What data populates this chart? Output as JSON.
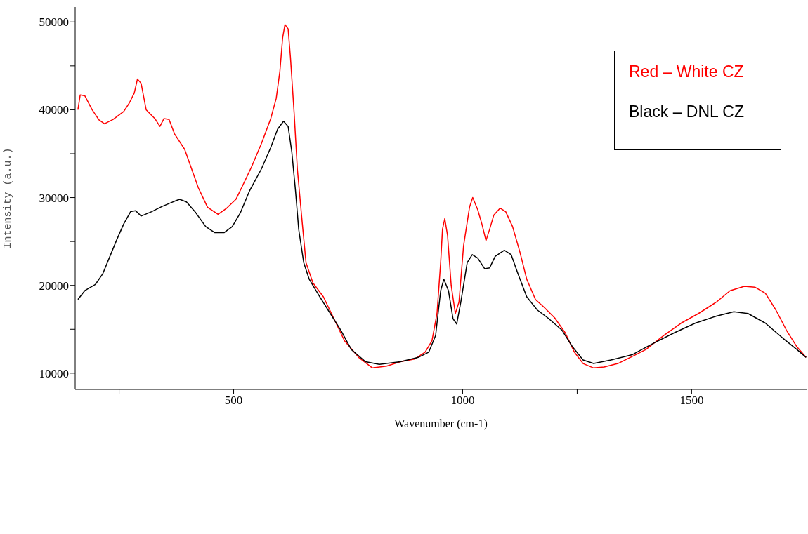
{
  "chart_data": {
    "type": "line",
    "xlabel": "Wavenumber (cm-1)",
    "ylabel": "Intensity (a.u.)",
    "xlim": [
      154,
      1751
    ],
    "ylim": [
      8150,
      51700
    ],
    "xticks": [
      {
        "value": 250,
        "label": null
      },
      500,
      {
        "value": 750,
        "label": null
      },
      1000,
      {
        "value": 1250,
        "label": null
      },
      1500
    ],
    "yticks": [
      10000,
      {
        "value": 15000,
        "label": null
      },
      20000,
      {
        "value": 25000,
        "label": null
      },
      30000,
      {
        "value": 35000,
        "label": null
      },
      40000,
      {
        "value": 45000,
        "label": null
      },
      50000
    ],
    "grid": false,
    "legend": "top right",
    "marker": "none",
    "line_style": "solid",
    "series": [
      {
        "name": "Red – White CZ",
        "color": "#ff0000",
        "x": [
          160,
          165,
          175,
          191,
          206,
          218,
          237,
          260,
          272,
          283,
          290,
          298,
          309,
          328,
          339,
          348,
          359,
          371,
          393,
          408,
          423,
          443,
          466,
          485,
          505,
          520,
          540,
          561,
          581,
          593,
          601,
          607,
          612,
          619,
          624,
          632,
          639,
          650,
          658,
          673,
          696,
          719,
          742,
          773,
          803,
          834,
          864,
          895,
          918,
          933,
          944,
          952,
          956,
          961,
          967,
          975,
          984,
          992,
          1002,
          1015,
          1022,
          1033,
          1042,
          1051,
          1059,
          1068,
          1082,
          1094,
          1109,
          1125,
          1140,
          1159,
          1178,
          1201,
          1224,
          1244,
          1263,
          1286,
          1309,
          1339,
          1370,
          1400,
          1439,
          1477,
          1515,
          1554,
          1584,
          1615,
          1638,
          1661,
          1684,
          1707,
          1730,
          1750
        ],
        "values": [
          40000,
          41700,
          41600,
          40000,
          38850,
          38400,
          38900,
          39800,
          40750,
          41900,
          43500,
          43000,
          40000,
          39000,
          38100,
          39000,
          38900,
          37250,
          35500,
          33300,
          31100,
          28900,
          28100,
          28800,
          29800,
          31400,
          33600,
          36200,
          39000,
          41300,
          44400,
          48200,
          49700,
          49200,
          46000,
          39700,
          33300,
          27000,
          22600,
          20300,
          18700,
          16200,
          13700,
          11800,
          10600,
          10800,
          11300,
          11600,
          12400,
          13700,
          16800,
          22600,
          26400,
          27600,
          25700,
          20000,
          16800,
          18100,
          24500,
          28900,
          30000,
          28600,
          27000,
          25100,
          26400,
          28000,
          28800,
          28400,
          26700,
          23800,
          20700,
          18400,
          17500,
          16300,
          14600,
          12400,
          11100,
          10600,
          10700,
          11100,
          11900,
          12700,
          14300,
          15700,
          16800,
          18100,
          19400,
          19900,
          19800,
          19100,
          17200,
          14900,
          13000,
          11800
        ]
      },
      {
        "name": "Black – DNL CZ",
        "color": "#000000",
        "x": [
          160,
          175,
          198,
          214,
          229,
          244,
          260,
          275,
          286,
          298,
          321,
          344,
          367,
          382,
          397,
          417,
          439,
          459,
          479,
          497,
          515,
          535,
          561,
          581,
          596,
          609,
          619,
          627,
          635,
          642,
          653,
          665,
          688,
          711,
          734,
          757,
          788,
          818,
          864,
          903,
          926,
          941,
          952,
          959,
          969,
          979,
          987,
          996,
          1010,
          1021,
          1033,
          1048,
          1059,
          1071,
          1091,
          1106,
          1121,
          1140,
          1163,
          1186,
          1217,
          1240,
          1263,
          1286,
          1324,
          1370,
          1416,
          1462,
          1508,
          1554,
          1592,
          1623,
          1661,
          1699,
          1730,
          1750
        ],
        "values": [
          18400,
          19400,
          20100,
          21300,
          23200,
          25100,
          27000,
          28400,
          28500,
          27900,
          28400,
          29000,
          29500,
          29800,
          29500,
          28300,
          26700,
          26000,
          26000,
          26700,
          28300,
          30800,
          33300,
          35700,
          37800,
          38700,
          38100,
          35200,
          30800,
          26400,
          22600,
          20700,
          18700,
          16800,
          14900,
          12700,
          11300,
          11000,
          11300,
          11800,
          12400,
          14300,
          19400,
          20700,
          19400,
          16200,
          15600,
          18100,
          22600,
          23500,
          23100,
          21900,
          22000,
          23300,
          24000,
          23500,
          21300,
          18700,
          17200,
          16300,
          14900,
          13000,
          11500,
          11100,
          11500,
          12100,
          13400,
          14600,
          15700,
          16500,
          17000,
          16800,
          15700,
          14000,
          12700,
          11800
        ]
      }
    ]
  }
}
